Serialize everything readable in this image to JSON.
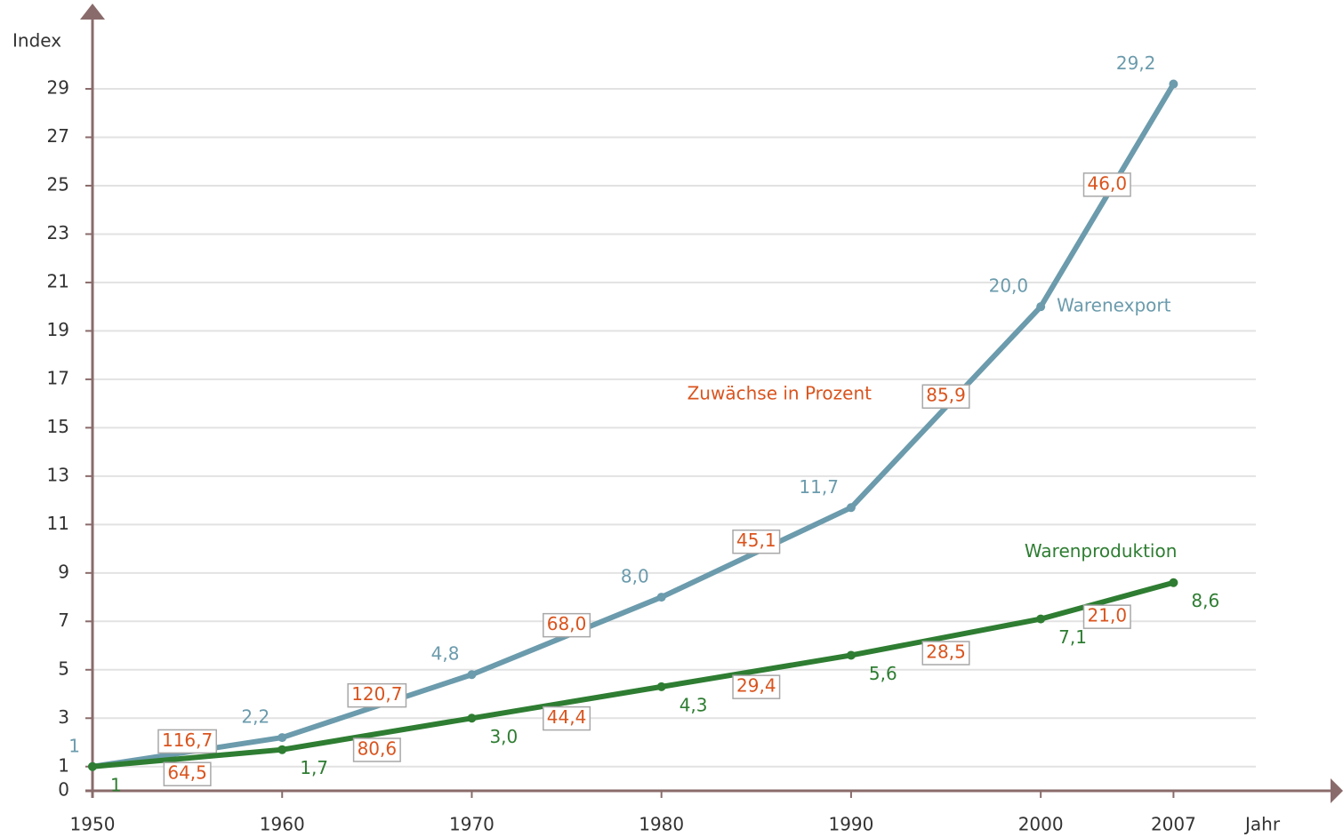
{
  "chart_data": {
    "type": "line",
    "y_label": "Index",
    "x_label": "Jahr",
    "annotation": "Zuwächse in Prozent",
    "annotation_color": "#d9541e",
    "x": [
      1950,
      1960,
      1970,
      1980,
      1990,
      2000,
      2007
    ],
    "xlim": [
      1950,
      2015
    ],
    "xticks": [
      1950,
      1960,
      1970,
      1980,
      1990,
      2000,
      2007
    ],
    "ylim": [
      0,
      31
    ],
    "yticks": [
      0,
      1,
      3,
      5,
      7,
      9,
      11,
      13,
      15,
      17,
      19,
      21,
      23,
      25,
      27,
      29
    ],
    "grid": true,
    "series": [
      {
        "name": "Warenexport",
        "color": "#6b9bac",
        "values": [
          1,
          2.2,
          4.8,
          8.0,
          11.7,
          20.0,
          29.2
        ],
        "value_labels": [
          "1",
          "2,2",
          "4,8",
          "8,0",
          "11,7",
          "20,0",
          "29,2"
        ],
        "growth": [
          116.7,
          120.7,
          68.0,
          45.1,
          85.9,
          46.0
        ],
        "growth_labels": [
          "116,7",
          "120,7",
          "68,0",
          "45,1",
          "85,9",
          "46,0"
        ]
      },
      {
        "name": "Warenproduktion",
        "color": "#2e7d32",
        "values": [
          1,
          1.7,
          3.0,
          4.3,
          5.6,
          7.1,
          8.6
        ],
        "value_labels": [
          "1",
          "1,7",
          "3,0",
          "4,3",
          "5,6",
          "7,1",
          "8,6"
        ],
        "growth": [
          64.5,
          80.6,
          44.4,
          29.4,
          28.5,
          21.0
        ],
        "growth_labels": [
          "64,5",
          "80,6",
          "44,4",
          "29,4",
          "28,5",
          "21,0"
        ]
      }
    ]
  }
}
